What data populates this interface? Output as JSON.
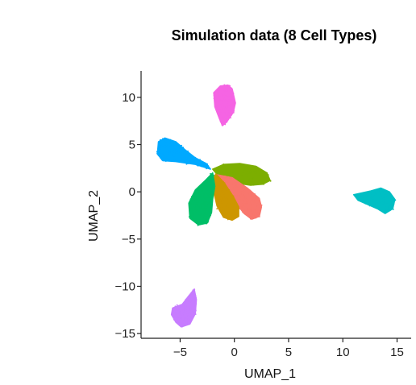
{
  "chart_data": {
    "type": "scatter",
    "title": "Simulation data (8 Cell Types)",
    "xlabel": "UMAP_1",
    "ylabel": "UMAP_2",
    "xlim": [
      -8.6,
      16.3
    ],
    "ylim": [
      -15.5,
      12.8
    ],
    "xticks": [
      -5,
      0,
      5,
      10,
      15
    ],
    "yticks": [
      -15,
      -10,
      -5,
      0,
      5,
      10
    ],
    "xtick_labels": [
      "−5",
      "0",
      "5",
      "10",
      "15"
    ],
    "ytick_labels": [
      "−15",
      "−10",
      "−5",
      "0",
      "5",
      "10"
    ],
    "grid": false,
    "legend": "none",
    "clusters": [
      {
        "color": "#00A9FF",
        "outline": [
          [
            -7.0,
            5.3
          ],
          [
            -6.4,
            5.7
          ],
          [
            -5.4,
            5.3
          ],
          [
            -4.6,
            4.5
          ],
          [
            -3.6,
            3.6
          ],
          [
            -2.6,
            3.0
          ],
          [
            -2.2,
            2.4
          ],
          [
            -3.6,
            2.9
          ],
          [
            -5.4,
            3.2
          ],
          [
            -6.6,
            3.3
          ],
          [
            -7.1,
            4.0
          ]
        ]
      },
      {
        "color": "#F564E3",
        "outline": [
          [
            -1.3,
            11.2
          ],
          [
            -0.6,
            11.3
          ],
          [
            -0.2,
            10.9
          ],
          [
            0.1,
            9.4
          ],
          [
            -0.1,
            8.4
          ],
          [
            -0.7,
            7.4
          ],
          [
            -1.1,
            7.0
          ],
          [
            -1.4,
            7.8
          ],
          [
            -1.8,
            9.0
          ],
          [
            -1.9,
            10.5
          ]
        ]
      },
      {
        "color": "#00BFC4",
        "outline": [
          [
            11.0,
            -0.3
          ],
          [
            11.8,
            -0.1
          ],
          [
            12.6,
            0.1
          ],
          [
            13.5,
            0.4
          ],
          [
            14.3,
            0.0
          ],
          [
            14.8,
            -0.8
          ],
          [
            14.6,
            -1.8
          ],
          [
            13.9,
            -2.3
          ],
          [
            13.2,
            -1.8
          ],
          [
            12.4,
            -1.4
          ],
          [
            11.4,
            -0.9
          ]
        ]
      },
      {
        "color": "#C77CFF",
        "outline": [
          [
            -5.7,
            -12.3
          ],
          [
            -4.8,
            -11.9
          ],
          [
            -4.2,
            -11.0
          ],
          [
            -3.7,
            -10.3
          ],
          [
            -3.5,
            -11.4
          ],
          [
            -3.6,
            -12.9
          ],
          [
            -4.1,
            -14.0
          ],
          [
            -4.9,
            -14.3
          ],
          [
            -5.4,
            -13.8
          ],
          [
            -5.8,
            -13.0
          ]
        ]
      },
      {
        "color": "#7CAE00",
        "outline": [
          [
            -2.0,
            2.4
          ],
          [
            -1.0,
            2.9
          ],
          [
            0.5,
            3.0
          ],
          [
            2.0,
            2.7
          ],
          [
            3.0,
            2.0
          ],
          [
            3.3,
            1.2
          ],
          [
            2.6,
            0.8
          ],
          [
            1.5,
            0.7
          ],
          [
            0.3,
            0.9
          ],
          [
            -1.2,
            1.3
          ]
        ]
      },
      {
        "color": "#F8766D",
        "outline": [
          [
            -1.6,
            1.8
          ],
          [
            -0.2,
            1.5
          ],
          [
            1.2,
            0.4
          ],
          [
            2.3,
            -0.7
          ],
          [
            2.5,
            -1.6
          ],
          [
            2.3,
            -2.6
          ],
          [
            1.6,
            -2.9
          ],
          [
            0.9,
            -2.3
          ],
          [
            0.0,
            -1.0
          ],
          [
            -1.0,
            0.8
          ]
        ]
      },
      {
        "color": "#CD9600",
        "outline": [
          [
            -1.7,
            1.9
          ],
          [
            -0.9,
            0.9
          ],
          [
            -0.1,
            -0.5
          ],
          [
            0.4,
            -1.6
          ],
          [
            0.4,
            -2.6
          ],
          [
            -0.2,
            -3.0
          ],
          [
            -1.0,
            -2.7
          ],
          [
            -1.6,
            -1.5
          ],
          [
            -1.9,
            0.0
          ],
          [
            -2.0,
            1.3
          ]
        ]
      },
      {
        "color": "#00BE67",
        "outline": [
          [
            -2.0,
            2.0
          ],
          [
            -1.8,
            0.6
          ],
          [
            -2.0,
            -0.8
          ],
          [
            -2.1,
            -2.2
          ],
          [
            -2.5,
            -3.3
          ],
          [
            -3.3,
            -3.5
          ],
          [
            -4.1,
            -2.8
          ],
          [
            -4.2,
            -1.2
          ],
          [
            -3.6,
            0.2
          ],
          [
            -2.6,
            1.3
          ]
        ]
      }
    ]
  }
}
